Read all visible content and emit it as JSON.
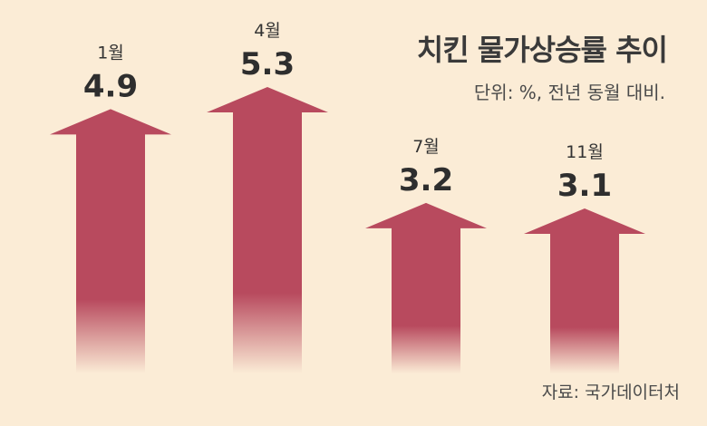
{
  "chart_data": {
    "type": "bar",
    "title": "치킨 물가상승률 추이",
    "subtitle": "단위: %, 전년 동월 대비.",
    "source": "자료: 국가데이터처",
    "categories": [
      "1월",
      "4월",
      "7월",
      "11월"
    ],
    "values": [
      4.9,
      5.3,
      3.2,
      3.1
    ],
    "value_labels": [
      "4.9",
      "5.3",
      "3.2",
      "3.1"
    ],
    "xlabel": "",
    "ylabel": "",
    "grid": false,
    "legend": "none",
    "colors": {
      "background": "#fbecd6",
      "bar": "#b84a5e",
      "text": "#2e2e2e"
    }
  }
}
